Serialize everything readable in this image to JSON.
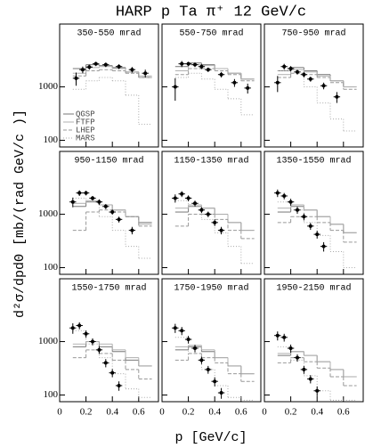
{
  "chart_data": {
    "type": "errorbar",
    "title": "HARP p Ta π⁺ 12 GeV/c",
    "x_label": "p [GeV/c]",
    "y_label": "d²σ/dpdΘ [mb/(rad GeV/c )]",
    "xlim": [
      0,
      0.75
    ],
    "ylim": [
      75,
      15000
    ],
    "log_y": true,
    "xticks": [
      0,
      0.2,
      0.4,
      0.6
    ],
    "yticks": [
      100,
      1000
    ],
    "data_color": "#000000",
    "models": [
      {
        "name": "QGSP",
        "color": "#777777",
        "dash": "none"
      },
      {
        "name": "FTFP",
        "color": "#b0b0b0",
        "dash": "none"
      },
      {
        "name": "LHEP",
        "color": "#999999",
        "dash": "4 2"
      },
      {
        "name": "MARS",
        "color": "#aaaaaa",
        "dash": "1 2"
      }
    ],
    "model_bins": [
      0.1,
      0.2,
      0.3,
      0.4,
      0.5,
      0.6,
      0.7
    ],
    "panels": [
      {
        "title": "350-550 mrad",
        "x": [
          0.125,
          0.175,
          0.225,
          0.275,
          0.35,
          0.45,
          0.55,
          0.65
        ],
        "values": [
          1450,
          2100,
          2350,
          2700,
          2600,
          2400,
          2100,
          1800
        ],
        "errors": [
          400,
          300,
          250,
          250,
          250,
          250,
          250,
          300
        ],
        "model_values": [
          [
            2200,
            2600,
            2500,
            2300,
            1900,
            1500
          ],
          [
            1800,
            2300,
            2400,
            2200,
            1900,
            1600
          ],
          [
            1600,
            2000,
            2100,
            2000,
            1800,
            1500
          ],
          [
            900,
            1300,
            1500,
            1300,
            700,
            200
          ]
        ]
      },
      {
        "title": "550-750 mrad",
        "x": [
          0.1,
          0.15,
          0.2,
          0.25,
          0.3,
          0.35,
          0.45,
          0.55,
          0.65
        ],
        "values": [
          1000,
          2700,
          2700,
          2600,
          2400,
          2100,
          1700,
          1200,
          950
        ],
        "errors": [
          450,
          350,
          250,
          250,
          250,
          200,
          200,
          200,
          200
        ],
        "model_values": [
          [
            2400,
            2800,
            2600,
            2200,
            1800,
            1400
          ],
          [
            2000,
            2600,
            2500,
            2200,
            1800,
            1400
          ],
          [
            1700,
            2200,
            2200,
            2000,
            1700,
            1300
          ],
          [
            1500,
            1800,
            1400,
            900,
            600,
            300
          ]
        ]
      },
      {
        "title": "750-950 mrad",
        "x": [
          0.1,
          0.15,
          0.2,
          0.25,
          0.3,
          0.35,
          0.45,
          0.55
        ],
        "values": [
          1200,
          2400,
          2200,
          1900,
          1700,
          1400,
          1050,
          650
        ],
        "errors": [
          400,
          300,
          250,
          200,
          200,
          150,
          150,
          150
        ],
        "model_values": [
          [
            2000,
            2300,
            2000,
            1700,
            1300,
            1000
          ],
          [
            1700,
            2100,
            1900,
            1600,
            1300,
            1000
          ],
          [
            1500,
            1800,
            1700,
            1500,
            1200,
            900
          ],
          [
            2000,
            1800,
            1000,
            500,
            250,
            150
          ]
        ]
      },
      {
        "title": "950-1150 mrad",
        "x": [
          0.1,
          0.15,
          0.2,
          0.25,
          0.3,
          0.35,
          0.4,
          0.45,
          0.55
        ],
        "values": [
          1700,
          2500,
          2500,
          2000,
          1700,
          1400,
          1100,
          800,
          500
        ],
        "errors": [
          350,
          300,
          250,
          200,
          200,
          150,
          120,
          100,
          80
        ],
        "model_values": [
          [
            1400,
            1700,
            1500,
            1200,
            900,
            700
          ],
          [
            1600,
            1800,
            1500,
            1200,
            900,
            650
          ],
          [
            500,
            1100,
            1200,
            1100,
            900,
            600
          ],
          [
            2000,
            1700,
            900,
            500,
            250,
            150
          ]
        ]
      },
      {
        "title": "1150-1350 mrad",
        "x": [
          0.1,
          0.15,
          0.2,
          0.25,
          0.3,
          0.35,
          0.4,
          0.45
        ],
        "values": [
          2000,
          2400,
          2000,
          1600,
          1200,
          1000,
          700,
          500
        ],
        "errors": [
          350,
          300,
          250,
          200,
          150,
          120,
          100,
          80
        ],
        "model_values": [
          [
            1100,
            1400,
            1300,
            1000,
            700,
            500
          ],
          [
            1300,
            1500,
            1300,
            1000,
            700,
            500
          ],
          [
            600,
            1000,
            1000,
            800,
            500,
            350
          ],
          [
            1800,
            1400,
            800,
            450,
            250,
            120
          ]
        ]
      },
      {
        "title": "1350-1550 mrad",
        "x": [
          0.1,
          0.15,
          0.2,
          0.25,
          0.3,
          0.35,
          0.4,
          0.45
        ],
        "values": [
          2500,
          2200,
          1700,
          1200,
          900,
          600,
          420,
          250
        ],
        "errors": [
          400,
          300,
          250,
          180,
          130,
          90,
          70,
          50
        ],
        "model_values": [
          [
            1100,
            1400,
            1200,
            900,
            650,
            450
          ],
          [
            1300,
            1500,
            1200,
            900,
            650,
            450
          ],
          [
            700,
            900,
            900,
            700,
            500,
            300
          ],
          [
            1700,
            1200,
            700,
            400,
            200,
            100
          ]
        ]
      },
      {
        "title": "1550-1750 mrad",
        "x": [
          0.1,
          0.15,
          0.2,
          0.25,
          0.3,
          0.35,
          0.4,
          0.45
        ],
        "values": [
          1800,
          2000,
          1400,
          1000,
          700,
          400,
          260,
          150
        ],
        "errors": [
          400,
          300,
          220,
          150,
          110,
          70,
          45,
          30
        ],
        "model_values": [
          [
            800,
            1000,
            800,
            650,
            450,
            350
          ],
          [
            900,
            1000,
            900,
            700,
            500,
            350
          ],
          [
            500,
            700,
            600,
            450,
            300,
            200
          ],
          [
            1600,
            900,
            500,
            250,
            130,
            90
          ]
        ]
      },
      {
        "title": "1750-1950 mrad",
        "x": [
          0.1,
          0.15,
          0.2,
          0.25,
          0.3,
          0.35,
          0.4,
          0.45
        ],
        "values": [
          1800,
          1600,
          1100,
          750,
          450,
          300,
          180,
          110
        ],
        "errors": [
          350,
          280,
          180,
          120,
          70,
          50,
          35,
          25
        ],
        "model_values": [
          [
            700,
            800,
            650,
            500,
            350,
            250
          ],
          [
            800,
            850,
            700,
            500,
            350,
            250
          ],
          [
            450,
            600,
            500,
            400,
            250,
            180
          ],
          [
            1200,
            600,
            300,
            150,
            90,
            80
          ]
        ]
      },
      {
        "title": "1950-2150 mrad",
        "x": [
          0.1,
          0.15,
          0.2,
          0.25,
          0.3,
          0.35,
          0.4
        ],
        "values": [
          1300,
          1200,
          750,
          500,
          300,
          200,
          120
        ],
        "errors": [
          250,
          200,
          130,
          80,
          50,
          35,
          25
        ],
        "model_values": [
          [
            550,
            650,
            550,
            420,
            300,
            220
          ],
          [
            600,
            650,
            550,
            420,
            300,
            220
          ],
          [
            400,
            500,
            420,
            320,
            220,
            150
          ],
          [
            800,
            450,
            230,
            120,
            80,
            80
          ]
        ]
      }
    ]
  }
}
